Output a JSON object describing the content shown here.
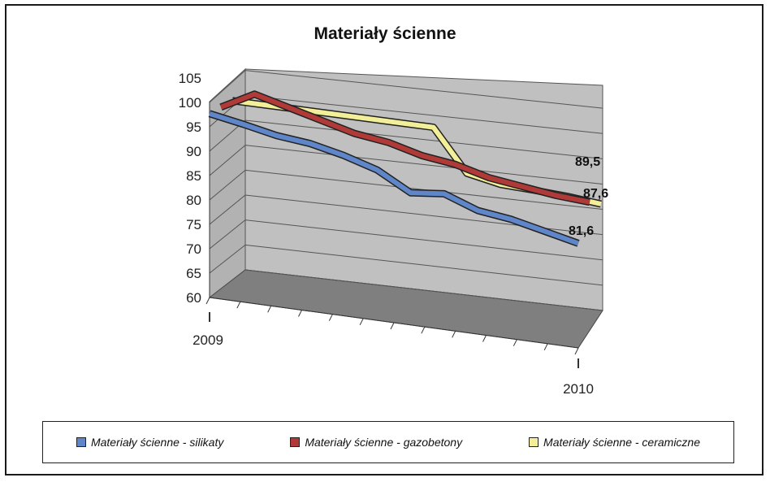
{
  "chart_data": {
    "type": "line",
    "title": "Materiały ścienne",
    "three_d": true,
    "x_start_label": "2009",
    "x_end_label": "2010",
    "ylim": [
      60,
      105
    ],
    "y_ticks": [
      "105",
      "100",
      "95",
      "90",
      "85",
      "80",
      "75",
      "70",
      "65",
      "60"
    ],
    "grid": true,
    "legend_position": "bottom",
    "series": [
      {
        "name": "Materiały ścienne - silikaty",
        "color": "#5f86c9",
        "values": [
          100,
          98.6,
          97,
          96.2,
          94.5,
          92.2,
          88,
          88.8,
          86,
          85,
          83.3,
          81.6
        ],
        "end_label": "81,6"
      },
      {
        "name": "Materiały ścienne - gazobetony",
        "color": "#b03a37",
        "values": [
          100,
          104,
          102,
          100,
          98,
          97,
          95,
          94,
          92,
          91,
          90,
          89.5
        ],
        "end_label": "89,5"
      },
      {
        "name": "Materiały ścienne - ceramiczne",
        "color": "#f3ef98",
        "values": [
          100,
          100,
          100,
          100,
          100,
          100,
          100,
          90.5,
          89,
          88.7,
          88.3,
          87.6
        ],
        "end_label": "87,6"
      }
    ]
  }
}
